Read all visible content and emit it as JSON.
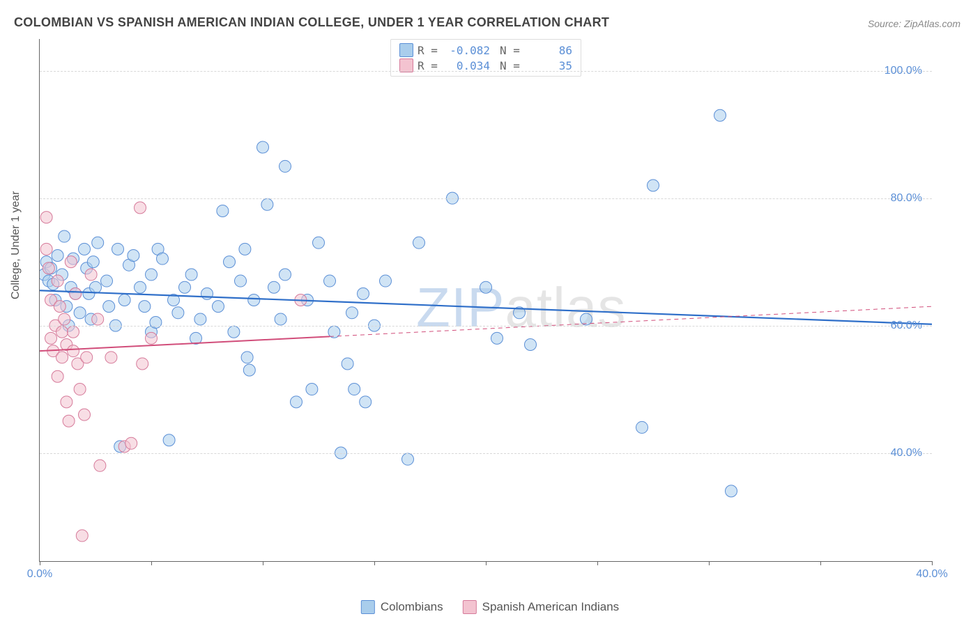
{
  "title": "COLOMBIAN VS SPANISH AMERICAN INDIAN COLLEGE, UNDER 1 YEAR CORRELATION CHART",
  "source": "Source: ZipAtlas.com",
  "ylabel": "College, Under 1 year",
  "watermark": {
    "part1": "ZIP",
    "part2": "atlas"
  },
  "chart": {
    "type": "scatter",
    "xlim": [
      0,
      40
    ],
    "ylim": [
      23,
      105
    ],
    "xticks": [
      0,
      5,
      10,
      15,
      20,
      25,
      30,
      35,
      40
    ],
    "xtick_labels_shown": {
      "0": "0.0%",
      "40": "40.0%"
    },
    "yticks": [
      40,
      60,
      80,
      100
    ],
    "ytick_labels": [
      "40.0%",
      "60.0%",
      "80.0%",
      "100.0%"
    ],
    "background_color": "#ffffff",
    "grid_color": "#d8d8d8",
    "axis_color": "#666666",
    "marker_radius": 8.5,
    "marker_opacity": 0.55,
    "title_fontsize": 18,
    "tick_fontsize": 16,
    "series": [
      {
        "name": "Colombians",
        "color_fill": "#a9cdec",
        "color_stroke": "#5b8fd6",
        "line_color": "#2f6fc9",
        "line_width": 2.2,
        "R": "-0.082",
        "N": "86",
        "regression": {
          "x1": 0,
          "y1": 65.5,
          "x2": 40,
          "y2": 60.2
        },
        "points": [
          [
            0.2,
            68
          ],
          [
            0.3,
            70
          ],
          [
            0.4,
            67
          ],
          [
            0.5,
            69
          ],
          [
            0.7,
            64
          ],
          [
            0.6,
            66.5
          ],
          [
            0.8,
            71
          ],
          [
            1.0,
            68
          ],
          [
            1.1,
            74
          ],
          [
            1.2,
            63
          ],
          [
            1.3,
            60
          ],
          [
            1.4,
            66
          ],
          [
            1.5,
            70.5
          ],
          [
            1.6,
            65
          ],
          [
            1.8,
            62
          ],
          [
            2.0,
            72
          ],
          [
            2.1,
            69
          ],
          [
            2.2,
            65
          ],
          [
            2.3,
            61
          ],
          [
            2.4,
            70
          ],
          [
            2.5,
            66
          ],
          [
            2.6,
            73
          ],
          [
            3.0,
            67
          ],
          [
            3.1,
            63
          ],
          [
            3.4,
            60
          ],
          [
            3.5,
            72
          ],
          [
            3.8,
            64
          ],
          [
            3.6,
            41
          ],
          [
            4.0,
            69.5
          ],
          [
            4.2,
            71
          ],
          [
            4.5,
            66
          ],
          [
            4.7,
            63
          ],
          [
            5.0,
            68
          ],
          [
            5.0,
            59
          ],
          [
            5.2,
            60.5
          ],
          [
            5.3,
            72
          ],
          [
            5.5,
            70.5
          ],
          [
            5.8,
            42
          ],
          [
            6.0,
            64
          ],
          [
            6.2,
            62
          ],
          [
            6.5,
            66
          ],
          [
            6.8,
            68
          ],
          [
            7.0,
            58
          ],
          [
            7.2,
            61
          ],
          [
            7.5,
            65
          ],
          [
            8.0,
            63
          ],
          [
            8.2,
            78
          ],
          [
            8.5,
            70
          ],
          [
            8.7,
            59
          ],
          [
            9.0,
            67
          ],
          [
            9.2,
            72
          ],
          [
            9.3,
            55
          ],
          [
            9.4,
            53
          ],
          [
            9.6,
            64
          ],
          [
            10.0,
            88
          ],
          [
            10.2,
            79
          ],
          [
            10.5,
            66
          ],
          [
            10.8,
            61
          ],
          [
            11.0,
            85
          ],
          [
            11.0,
            68
          ],
          [
            11.5,
            48
          ],
          [
            12.0,
            64
          ],
          [
            12.2,
            50
          ],
          [
            12.5,
            73
          ],
          [
            13.0,
            67
          ],
          [
            13.2,
            59
          ],
          [
            13.5,
            40
          ],
          [
            13.8,
            54
          ],
          [
            14.0,
            62
          ],
          [
            14.1,
            50
          ],
          [
            14.6,
            48
          ],
          [
            14.5,
            65
          ],
          [
            15.0,
            60
          ],
          [
            15.5,
            67
          ],
          [
            16.5,
            39
          ],
          [
            17.0,
            73
          ],
          [
            18.5,
            80
          ],
          [
            20.0,
            66
          ],
          [
            20.5,
            58
          ],
          [
            21.5,
            62
          ],
          [
            22.0,
            57
          ],
          [
            24.5,
            61
          ],
          [
            27.0,
            44
          ],
          [
            27.5,
            82
          ],
          [
            30.5,
            93
          ],
          [
            31.0,
            34
          ]
        ]
      },
      {
        "name": "Spanish American Indians",
        "color_fill": "#f3c3d0",
        "color_stroke": "#d67a9a",
        "line_color": "#d14d7a",
        "line_width": 2,
        "R": "0.034",
        "N": "35",
        "regression": {
          "x1": 0,
          "y1": 56.0,
          "x2": 40,
          "y2": 63.0
        },
        "regression_solid_until_x": 13,
        "points": [
          [
            0.3,
            72
          ],
          [
            0.3,
            77
          ],
          [
            0.4,
            69
          ],
          [
            0.5,
            58
          ],
          [
            0.5,
            64
          ],
          [
            0.6,
            56
          ],
          [
            0.7,
            60
          ],
          [
            0.8,
            67
          ],
          [
            0.8,
            52
          ],
          [
            0.9,
            63
          ],
          [
            1.0,
            55
          ],
          [
            1.0,
            59
          ],
          [
            1.1,
            61
          ],
          [
            1.2,
            57
          ],
          [
            1.2,
            48
          ],
          [
            1.3,
            45
          ],
          [
            1.4,
            70
          ],
          [
            1.5,
            56
          ],
          [
            1.5,
            59
          ],
          [
            1.6,
            65
          ],
          [
            1.7,
            54
          ],
          [
            1.8,
            50
          ],
          [
            2.0,
            46
          ],
          [
            2.1,
            55
          ],
          [
            2.3,
            68
          ],
          [
            2.6,
            61
          ],
          [
            2.7,
            38
          ],
          [
            3.2,
            55
          ],
          [
            3.8,
            41
          ],
          [
            4.1,
            41.5
          ],
          [
            4.5,
            78.5
          ],
          [
            4.6,
            54
          ],
          [
            5.0,
            58
          ],
          [
            11.7,
            64
          ],
          [
            1.9,
            27
          ]
        ]
      }
    ]
  },
  "legend_bottom": [
    {
      "label": "Colombians",
      "swatch_fill": "#a9cdec",
      "swatch_stroke": "#5b8fd6"
    },
    {
      "label": "Spanish American Indians",
      "swatch_fill": "#f3c3d0",
      "swatch_stroke": "#d67a9a"
    }
  ]
}
